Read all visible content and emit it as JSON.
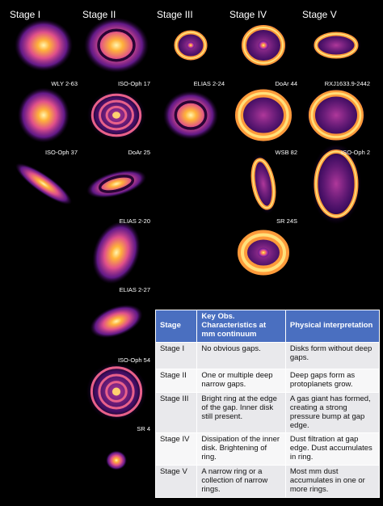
{
  "stages": [
    "Stage I",
    "Stage II",
    "Stage III",
    "Stage IV",
    "Stage V"
  ],
  "panels": [
    {
      "name": "WLY 2-63"
    },
    {
      "name": "ISO-Oph 17"
    },
    {
      "name": "ELIAS 2-24"
    },
    {
      "name": "DoAr 44"
    },
    {
      "name": "RXJ1633.9-2442"
    },
    {
      "name": "ISO-Oph 37"
    },
    {
      "name": "DoAr 25"
    },
    {
      "name": "WSB 82"
    },
    {
      "name": "ISO-Oph 2"
    },
    {
      "name": "ELIAS 2-20"
    },
    {
      "name": "SR 24S"
    },
    {
      "name": "ELIAS 2-27"
    },
    {
      "name": "ISO-Oph 54"
    },
    {
      "name": "SR 4"
    }
  ],
  "table": {
    "header": [
      "Stage",
      "Key Obs. Characteristics at mm continuum",
      "Physical interpretation"
    ],
    "rows": [
      [
        "Stage I",
        "No obvious gaps.",
        "Disks form without deep gaps."
      ],
      [
        "Stage II",
        "One or multiple deep narrow gaps.",
        "Deep gaps form as protoplanets grow."
      ],
      [
        "Stage III",
        "Bright ring at the edge of the gap. Inner disk still present.",
        "A gas giant has formed, creating a strong pressure bump at gap edge."
      ],
      [
        "Stage IV",
        "Dissipation of the inner disk. Brightening of ring.",
        "Dust filtration at gap edge. Dust accumulates in ring."
      ],
      [
        "Stage V",
        "A narrow ring or a collection of narrow rings.",
        "Most mm dust accumulates in one or more rings."
      ]
    ]
  }
}
